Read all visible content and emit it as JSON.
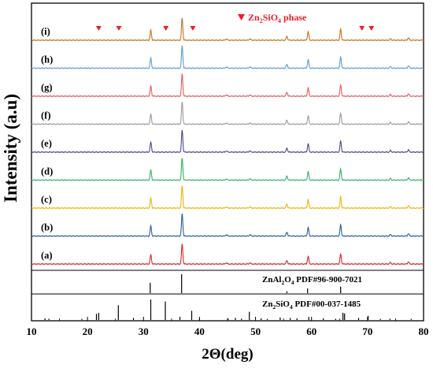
{
  "chart_data": {
    "type": "line",
    "xlabel": "2Θ(deg)",
    "ylabel": "Intensity (a.u)",
    "xlim": [
      10,
      80
    ],
    "xticks": [
      "10",
      "20",
      "30",
      "40",
      "50",
      "60",
      "70",
      "80"
    ],
    "grid": false,
    "legend": {
      "entries": [
        {
          "marker": "▼",
          "label_parts": [
            "Zn",
            "2",
            "SiO",
            "4",
            " phase"
          ],
          "color": "#e8202a"
        }
      ],
      "placement": "top-right"
    },
    "peaks": [
      {
        "x": 31.3,
        "h": 0.45
      },
      {
        "x": 36.9,
        "h": 1.0
      },
      {
        "x": 44.8,
        "h": 0.06
      },
      {
        "x": 49.0,
        "h": 0.06
      },
      {
        "x": 55.6,
        "h": 0.18
      },
      {
        "x": 59.4,
        "h": 0.38
      },
      {
        "x": 65.2,
        "h": 0.5
      },
      {
        "x": 74.1,
        "h": 0.07
      },
      {
        "x": 77.3,
        "h": 0.11
      }
    ],
    "series": [
      {
        "name": "(a)",
        "color": "#dd2222",
        "scale": 0.9
      },
      {
        "name": "(b)",
        "color": "#2a5c9c",
        "scale": 1.0
      },
      {
        "name": "(c)",
        "color": "#f0b400",
        "scale": 1.0
      },
      {
        "name": "(d)",
        "color": "#2eb366",
        "scale": 1.0
      },
      {
        "name": "(e)",
        "color": "#4e4491",
        "scale": 1.0
      },
      {
        "name": "(f)",
        "color": "#9a9a9a",
        "scale": 1.0
      },
      {
        "name": "(g)",
        "color": "#e8585e",
        "scale": 1.0
      },
      {
        "name": "(h)",
        "color": "#5b9bd5",
        "scale": 1.0
      },
      {
        "name": "(i)",
        "color": "#c8711e",
        "scale": 1.0
      }
    ],
    "zn2sio4_markers_x": [
      22.0,
      25.6,
      34.0,
      38.8,
      69.0,
      70.7
    ],
    "reference_patterns": [
      {
        "label_parts": [
          "ZnAl",
          "2",
          "O",
          "4",
          " PDF#96-900-7021"
        ],
        "lines": [
          {
            "x": 31.2,
            "h": 0.55
          },
          {
            "x": 36.8,
            "h": 1.0
          },
          {
            "x": 55.6,
            "h": 0.1
          },
          {
            "x": 59.3,
            "h": 0.25
          },
          {
            "x": 65.2,
            "h": 0.35
          }
        ]
      },
      {
        "label_parts": [
          "Zn",
          "2",
          "SiO",
          "4",
          " PDF#00-037-1485"
        ],
        "lines": [
          {
            "x": 12.4,
            "h": 0.08
          },
          {
            "x": 13.1,
            "h": 0.06
          },
          {
            "x": 19.0,
            "h": 0.05
          },
          {
            "x": 21.6,
            "h": 0.3
          },
          {
            "x": 22.0,
            "h": 0.35
          },
          {
            "x": 25.5,
            "h": 0.72
          },
          {
            "x": 28.2,
            "h": 0.1
          },
          {
            "x": 31.3,
            "h": 1.0
          },
          {
            "x": 33.9,
            "h": 0.9
          },
          {
            "x": 36.5,
            "h": 0.15
          },
          {
            "x": 38.6,
            "h": 0.45
          },
          {
            "x": 40.0,
            "h": 0.05
          },
          {
            "x": 45.1,
            "h": 0.08
          },
          {
            "x": 46.4,
            "h": 0.1
          },
          {
            "x": 47.5,
            "h": 0.07
          },
          {
            "x": 48.9,
            "h": 0.4
          },
          {
            "x": 51.0,
            "h": 0.08
          },
          {
            "x": 52.1,
            "h": 0.05
          },
          {
            "x": 54.4,
            "h": 0.12
          },
          {
            "x": 56.2,
            "h": 0.1
          },
          {
            "x": 57.4,
            "h": 0.08
          },
          {
            "x": 59.5,
            "h": 0.15
          },
          {
            "x": 62.1,
            "h": 0.08
          },
          {
            "x": 64.3,
            "h": 0.06
          },
          {
            "x": 65.6,
            "h": 0.35
          },
          {
            "x": 65.9,
            "h": 0.32
          },
          {
            "x": 68.4,
            "h": 0.1
          },
          {
            "x": 70.1,
            "h": 0.2
          },
          {
            "x": 72.3,
            "h": 0.05
          },
          {
            "x": 74.0,
            "h": 0.06
          },
          {
            "x": 77.8,
            "h": 0.05
          }
        ]
      }
    ]
  }
}
